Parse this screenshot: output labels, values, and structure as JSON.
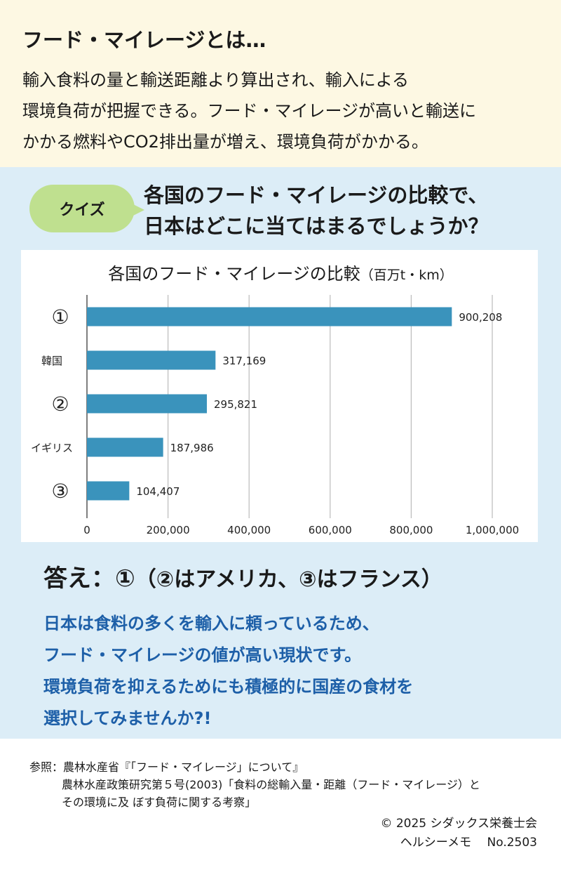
{
  "intro": {
    "title": "フード・マイレージとは…",
    "lines": [
      "輸入食料の量と輸送距離より算出され、輸入による",
      "環境負荷が把握できる。フード・マイレージが高いと輸送に",
      "かかる燃料やCO2排出量が増え、環境負荷がかかる。"
    ]
  },
  "quiz": {
    "badge": "クイズ",
    "question_lines": [
      "各国のフード・マイレージの比較で、",
      "日本はどこに当てはまるでしょうか？"
    ]
  },
  "chart_data": {
    "type": "bar",
    "orientation": "horizontal",
    "title": "各国のフード・マイレージの比較",
    "unit": "（百万t・km）",
    "categories": [
      "①",
      "韓国",
      "②",
      "イギリス",
      "③"
    ],
    "values": [
      900208,
      317169,
      295821,
      187986,
      104407
    ],
    "value_labels": [
      "900,208",
      "317,169",
      "295,821",
      "187,986",
      "104,407"
    ],
    "xlim": [
      0,
      1000000
    ],
    "x_ticks": [
      0,
      200000,
      400000,
      600000,
      800000,
      1000000
    ],
    "x_tick_labels": [
      "0",
      "200,000",
      "400,000",
      "600,000",
      "800,000",
      "1,000,000"
    ],
    "grid": "vertical",
    "legend": "none",
    "bar_color": "#3a93bc"
  },
  "answer": {
    "main": "答え：①",
    "detail": "（②はアメリカ、③はフランス）"
  },
  "explanation": {
    "lines": [
      "日本は食料の多くを輸入に頼っているため、",
      "フード・マイレージの値が高い現状です。",
      "環境負荷を抑えるためにも積極的に国産の食材を",
      "選択してみませんか?!"
    ],
    "color": "#1d5fa8"
  },
  "references": {
    "line1": "参照：農林水産省『「フード・マイレージ」について』",
    "line2": "農林水産政策研究第５号(2003)「食料の総輸入量・距離（フード・マイレージ）と",
    "line3": "その環境に及 ぼす負荷に関する考察」"
  },
  "credit": {
    "copyright": "© 2025 シダックス栄養士会",
    "memo": "ヘルシーメモ　 No.2503"
  },
  "colors": {
    "top_bg": "#fdf8e3",
    "mid_bg": "#dcedf7",
    "badge_bg": "#bfe08f"
  }
}
